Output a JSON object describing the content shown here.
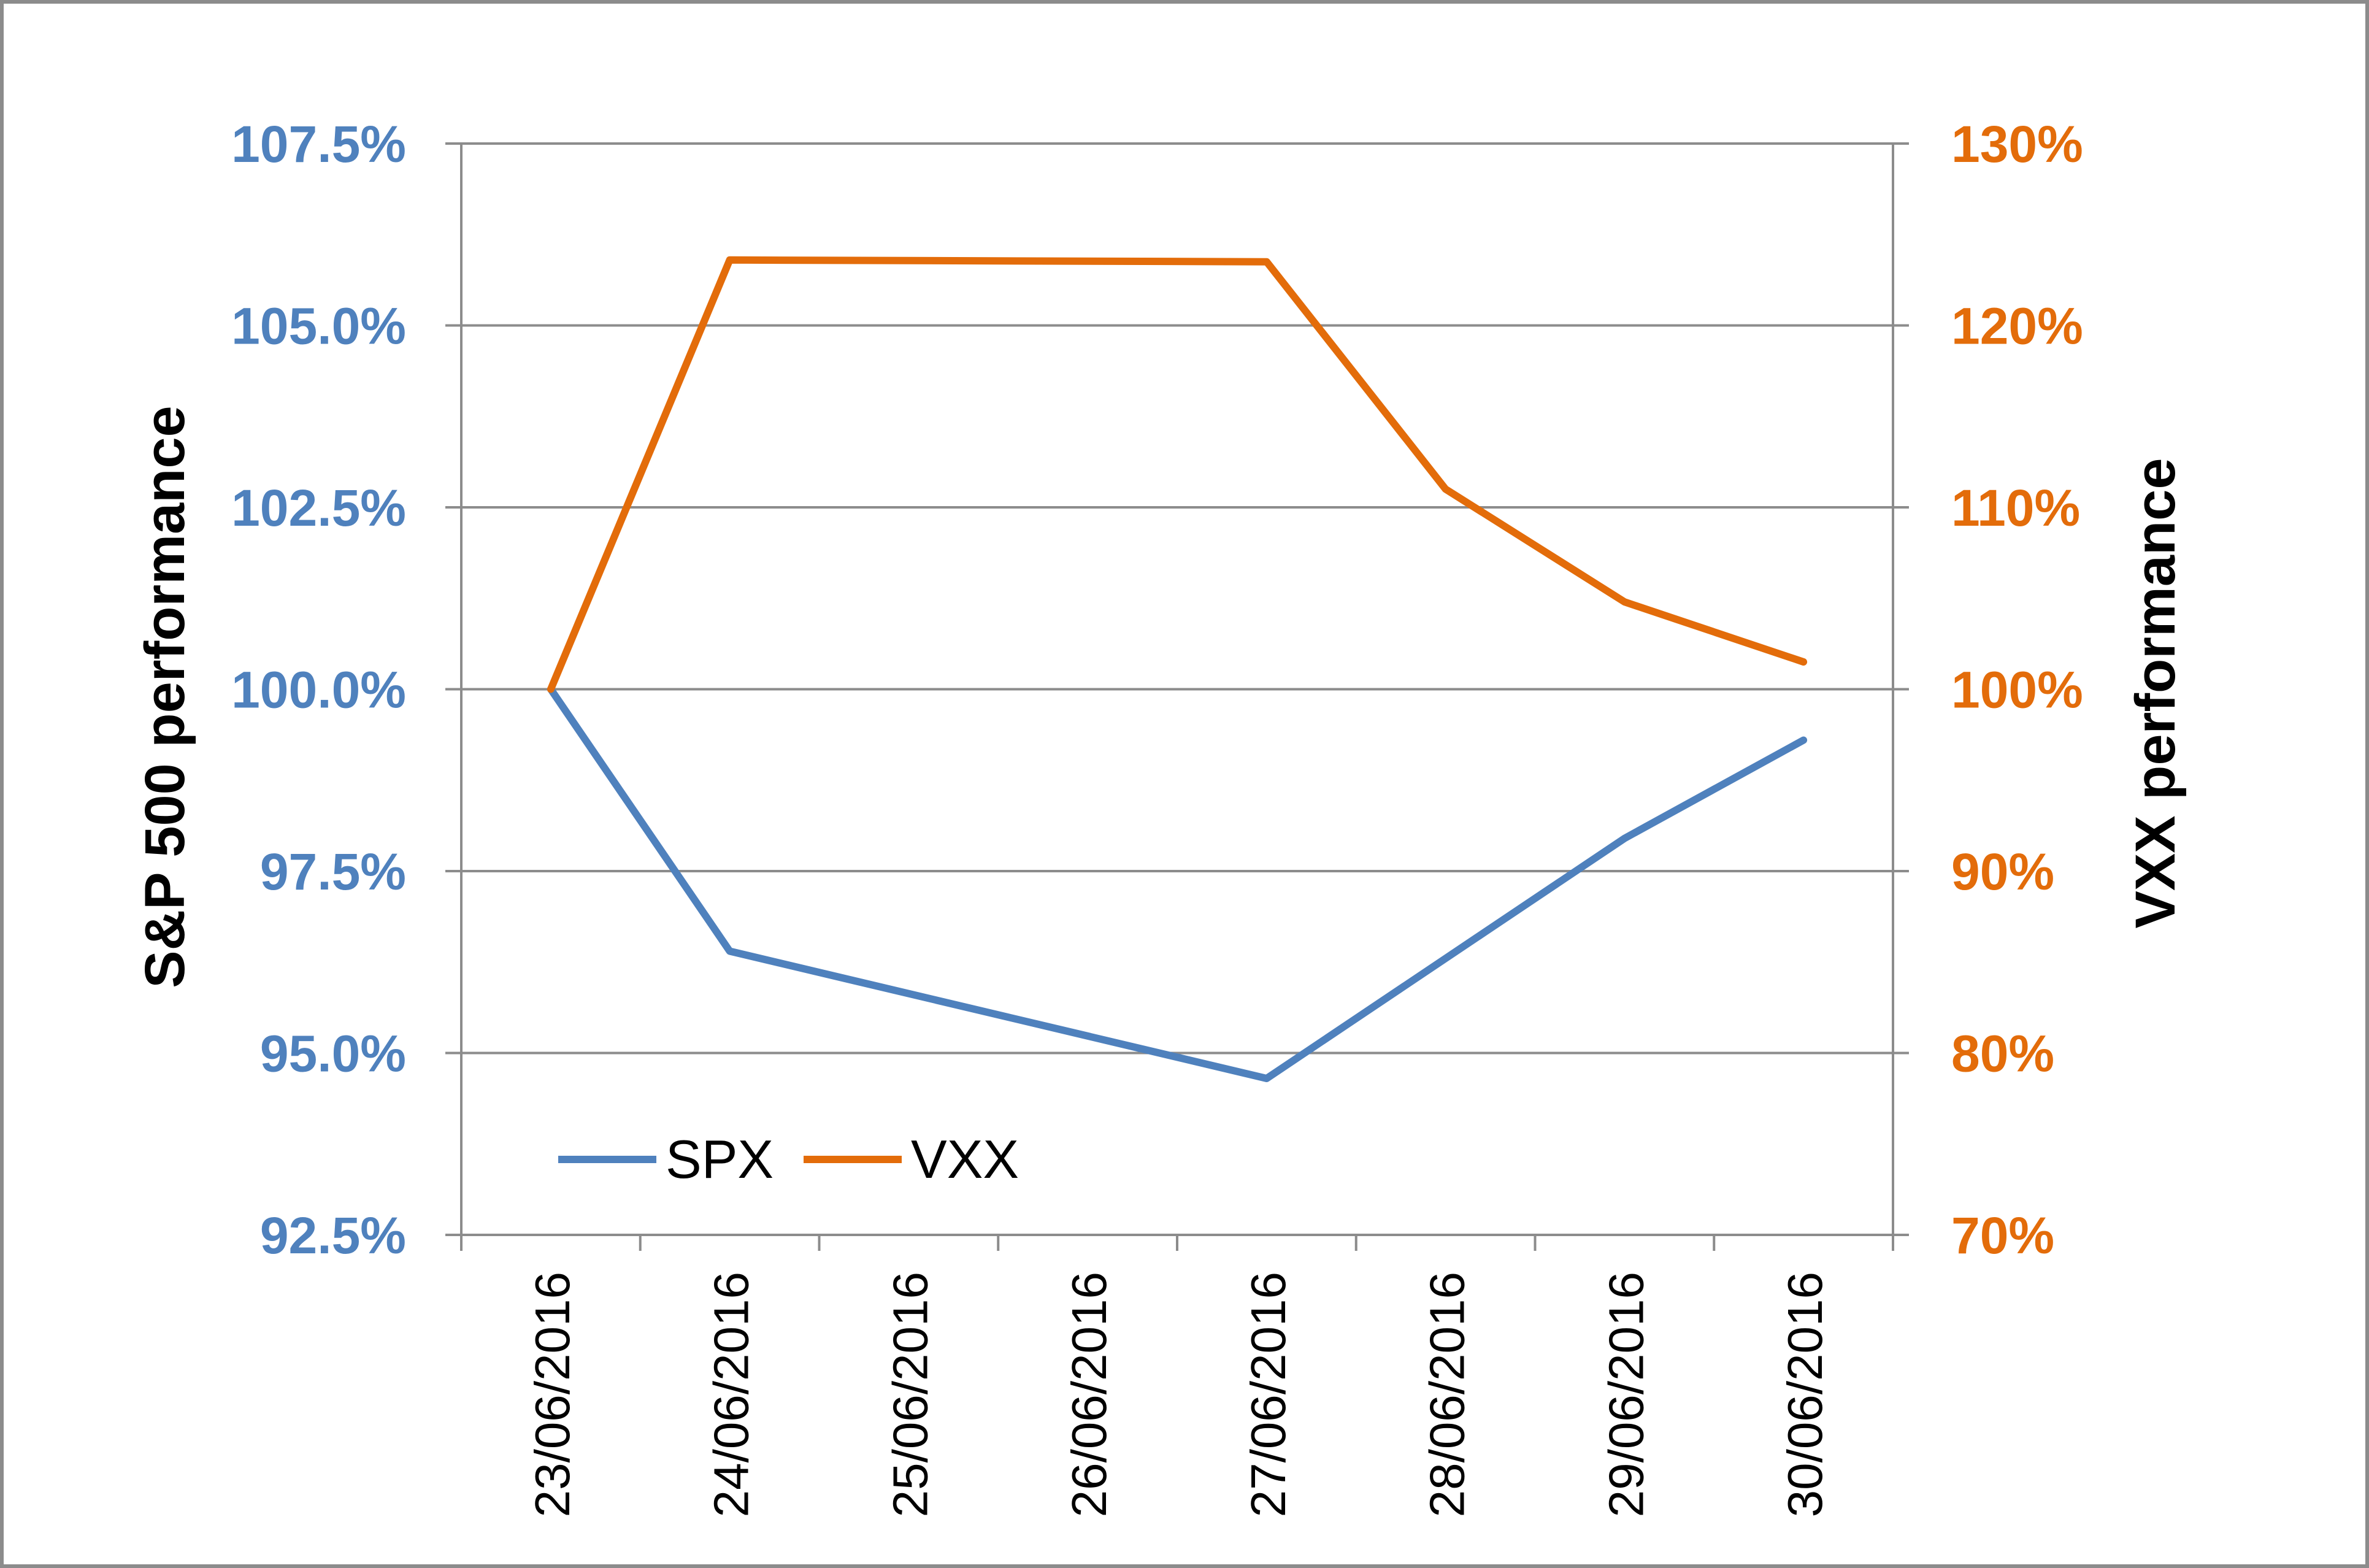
{
  "chart_data": {
    "type": "line",
    "categories": [
      "23/06/2016",
      "24/06/2016",
      "25/06/2016",
      "26/06/2016",
      "27/06/2016",
      "28/06/2016",
      "29/06/2016",
      "30/06/2016"
    ],
    "series": [
      {
        "name": "SPX",
        "axis": "left",
        "color": "#4f81bd",
        "points": [
          {
            "x": "23/06/2016",
            "y": 100.0
          },
          {
            "x": "24/06/2016",
            "y": 96.4
          },
          {
            "x": "27/06/2016",
            "y": 94.65
          },
          {
            "x": "28/06/2016",
            "y": 96.3
          },
          {
            "x": "29/06/2016",
            "y": 97.95
          },
          {
            "x": "30/06/2016",
            "y": 99.3
          }
        ]
      },
      {
        "name": "VXX",
        "axis": "right",
        "color": "#e36c0a",
        "points": [
          {
            "x": "23/06/2016",
            "y": 100
          },
          {
            "x": "24/06/2016",
            "y": 123.6
          },
          {
            "x": "27/06/2016",
            "y": 123.5
          },
          {
            "x": "28/06/2016",
            "y": 111.0
          },
          {
            "x": "29/06/2016",
            "y": 104.8
          },
          {
            "x": "30/06/2016",
            "y": 101.5
          }
        ]
      }
    ],
    "y_left": {
      "label": "S&P 500 performance",
      "min": 92.5,
      "max": 107.5,
      "ticks": [
        "92.5%",
        "95.0%",
        "97.5%",
        "100.0%",
        "102.5%",
        "105.0%",
        "107.5%"
      ],
      "tick_color": "#4f81bd"
    },
    "y_right": {
      "label": "VXX performance",
      "min": 70,
      "max": 130,
      "ticks": [
        "70%",
        "80%",
        "90%",
        "100%",
        "110%",
        "120%",
        "130%"
      ],
      "tick_color": "#e36c0a"
    },
    "grid": true,
    "legend": {
      "position": "bottom-left",
      "entries": [
        "SPX",
        "VXX"
      ]
    }
  }
}
